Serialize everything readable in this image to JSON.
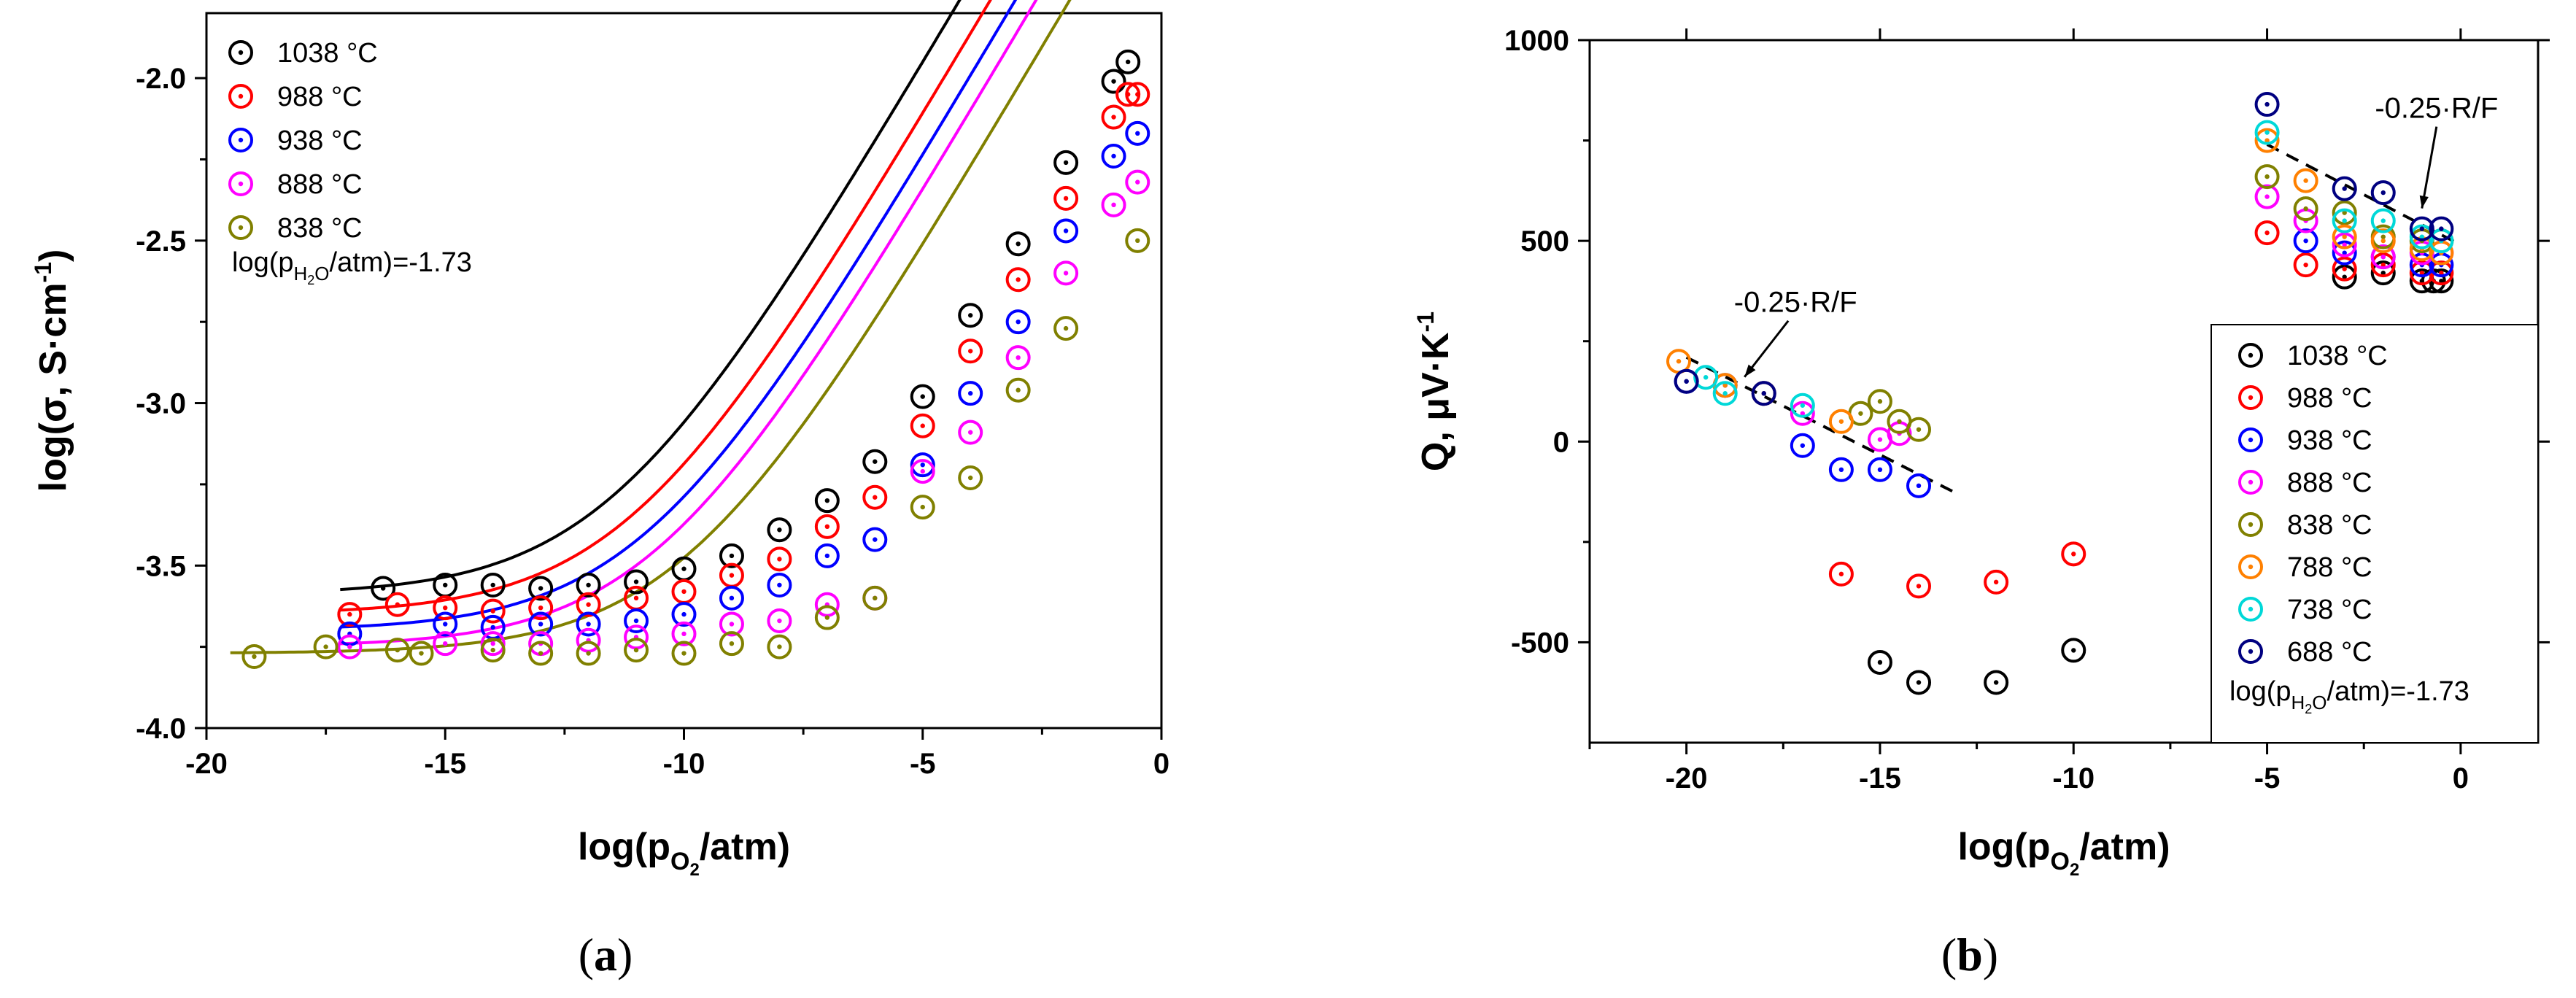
{
  "chart_data": [
    {
      "type": "scatter",
      "panel_label": "a",
      "title": "",
      "xlabel": {
        "prefix": "log(p",
        "sub": "O",
        "subsub": "2",
        "suffix": "/atm)"
      },
      "ylabel": {
        "text": "log(σ, S·cm",
        "sup": "-1",
        "close": ")"
      },
      "xlim": [
        -20,
        0
      ],
      "ylim": [
        -4.0,
        -1.8
      ],
      "xticks": [
        -20,
        -15,
        -10,
        -5,
        0
      ],
      "xtick_labels": [
        "-20",
        "-15",
        "-10",
        "-5",
        "0"
      ],
      "yticks": [
        -4.0,
        -3.5,
        -3.0,
        -2.5,
        -2.0
      ],
      "ytick_labels": [
        "-4.0",
        "-3.5",
        "-3.0",
        "-2.5",
        "-2.0"
      ],
      "grid": false,
      "legend_position": "top-left",
      "annotation": {
        "prefix": "log(p",
        "sub": "H",
        "subsub": "2",
        "subtail": "O",
        "suffix": "/atm)=-1.73"
      },
      "series": [
        {
          "name": "1038 °C",
          "color": "#000000",
          "x": [
            -16.3,
            -15.0,
            -14.0,
            -13.0,
            -12.0,
            -11.0,
            -10.0,
            -9.0,
            -8.0,
            -7.0,
            -6.0,
            -5.0,
            -4.0,
            -3.0,
            -2.0,
            -1.0,
            -0.7
          ],
          "y": [
            -3.57,
            -3.56,
            -3.56,
            -3.57,
            -3.56,
            -3.55,
            -3.51,
            -3.47,
            -3.39,
            -3.3,
            -3.18,
            -2.98,
            -2.73,
            -2.51,
            -2.26,
            -2.01,
            -1.95
          ],
          "fit": {
            "x0": -17.2,
            "base": -3.59,
            "amp": 0.000195,
            "slope": 0.25
          }
        },
        {
          "name": "988 °C",
          "color": "#ff0000",
          "x": [
            -17.0,
            -16.0,
            -15.0,
            -14.0,
            -13.0,
            -12.0,
            -11.0,
            -10.0,
            -9.0,
            -8.0,
            -7.0,
            -6.0,
            -5.0,
            -4.0,
            -3.0,
            -2.0,
            -1.0,
            -0.7,
            -0.5
          ],
          "y": [
            -3.65,
            -3.62,
            -3.63,
            -3.64,
            -3.63,
            -3.62,
            -3.6,
            -3.58,
            -3.53,
            -3.48,
            -3.38,
            -3.29,
            -3.07,
            -2.84,
            -2.62,
            -2.37,
            -2.12,
            -2.05,
            -2.05
          ],
          "fit": {
            "x0": -17.2,
            "base": -3.65,
            "amp": 0.000135,
            "slope": 0.25
          }
        },
        {
          "name": "938 °C",
          "color": "#0000ff",
          "x": [
            -17.0,
            -15.0,
            -14.0,
            -13.0,
            -12.0,
            -11.0,
            -10.0,
            -9.0,
            -8.0,
            -7.0,
            -6.0,
            -5.0,
            -4.0,
            -3.0,
            -2.0,
            -1.0,
            -0.5
          ],
          "y": [
            -3.71,
            -3.68,
            -3.69,
            -3.68,
            -3.68,
            -3.67,
            -3.65,
            -3.6,
            -3.56,
            -3.47,
            -3.42,
            -3.19,
            -2.97,
            -2.75,
            -2.47,
            -2.24,
            -2.17
          ],
          "fit": {
            "x0": -17.2,
            "base": -3.7,
            "amp": 0.0001,
            "slope": 0.25
          }
        },
        {
          "name": "888 °C",
          "color": "#ff00ff",
          "x": [
            -17.0,
            -15.0,
            -14.0,
            -13.0,
            -12.0,
            -11.0,
            -10.0,
            -9.0,
            -8.0,
            -7.0,
            -6.0,
            -5.0,
            -4.0,
            -3.0,
            -2.0,
            -1.0,
            -0.5
          ],
          "y": [
            -3.75,
            -3.74,
            -3.74,
            -3.74,
            -3.73,
            -3.72,
            -3.71,
            -3.68,
            -3.67,
            -3.62,
            -3.6,
            -3.21,
            -3.09,
            -2.86,
            -2.6,
            -2.39,
            -2.32
          ],
          "fit": {
            "x0": -17.2,
            "base": -3.75,
            "amp": 7.8e-05,
            "slope": 0.25
          }
        },
        {
          "name": "838 °C",
          "color": "#808000",
          "x": [
            -19.0,
            -17.5,
            -16.0,
            -15.5,
            -14.0,
            -13.0,
            -12.0,
            -11.0,
            -10.0,
            -9.0,
            -8.0,
            -7.0,
            -6.0,
            -5.0,
            -4.0,
            -3.0,
            -2.0,
            -0.5
          ],
          "y": [
            -3.78,
            -3.75,
            -3.76,
            -3.77,
            -3.76,
            -3.77,
            -3.77,
            -3.76,
            -3.77,
            -3.74,
            -3.75,
            -3.66,
            -3.6,
            -3.32,
            -3.23,
            -2.96,
            -2.77,
            -2.5
          ],
          "fit": {
            "x0": -19.5,
            "base": -3.77,
            "amp": 5.2e-05,
            "slope": 0.25
          }
        }
      ]
    },
    {
      "type": "scatter",
      "panel_label": "b",
      "title": "",
      "xlabel": {
        "prefix": "log(p",
        "sub": "O",
        "subsub": "2",
        "suffix": "/atm)"
      },
      "ylabel": {
        "text": "Q, μV·K",
        "sup": "-1",
        "close": ""
      },
      "xlim": [
        -22.5,
        2
      ],
      "ylim": [
        -750,
        1000
      ],
      "xticks": [
        -20,
        -15,
        -10,
        -5,
        0
      ],
      "xtick_labels": [
        "-20",
        "-15",
        "-10",
        "-5",
        "0"
      ],
      "yticks": [
        1000,
        500,
        0,
        -500
      ],
      "ytick_labels": [
        "1000",
        "500",
        "0",
        "-500"
      ],
      "grid": false,
      "legend_position": "bottom-right",
      "annotation": {
        "prefix": "log(p",
        "sub": "H",
        "subsub": "2",
        "subtail": "O",
        "suffix": "/atm)=-1.73"
      },
      "slope_annotations": [
        {
          "text": "-0.25·R/F",
          "line_x": [
            -20.0,
            -13.0
          ],
          "line_y": [
            210,
            -130
          ],
          "arrow_tip": [
            -18.5,
            150
          ]
        },
        {
          "text": "-0.25·R/F",
          "line_x": [
            -5.0,
            0.0
          ],
          "line_y": [
            740,
            490
          ],
          "arrow_tip": [
            -1.0,
            570
          ]
        }
      ],
      "series": [
        {
          "name": "1038 °C",
          "color": "#000000",
          "x": [
            -15.0,
            -14.0,
            -12.0,
            -10.0,
            -3.0,
            -2.0,
            -1.0,
            -0.7,
            -0.5
          ],
          "y": [
            -550,
            -600,
            -600,
            -520,
            410,
            420,
            400,
            400,
            400
          ]
        },
        {
          "name": "988 °C",
          "color": "#ff0000",
          "x": [
            -16.0,
            -14.0,
            -12.0,
            -10.0,
            -5.0,
            -4.0,
            -3.0,
            -2.0,
            -1.0,
            -0.5
          ],
          "y": [
            -330,
            -360,
            -350,
            -280,
            520,
            440,
            430,
            440,
            420,
            420
          ]
        },
        {
          "name": "938 °C",
          "color": "#0000ff",
          "x": [
            -20.0,
            -19.0,
            -18.0,
            -17.0,
            -16.0,
            -15.0,
            -14.0,
            -4.0,
            -3.0,
            -2.0,
            -1.0,
            -0.5
          ],
          "y": [
            150,
            140,
            120,
            -10,
            -70,
            -70,
            -110,
            500,
            470,
            460,
            440,
            440
          ]
        },
        {
          "name": "888 °C",
          "color": "#ff00ff",
          "x": [
            -17.0,
            -15.0,
            -14.5,
            -5.0,
            -4.0,
            -3.0,
            -2.0,
            -1.0,
            -0.5
          ],
          "y": [
            70,
            5,
            20,
            610,
            550,
            490,
            460,
            470,
            470
          ]
        },
        {
          "name": "838 °C",
          "color": "#808000",
          "x": [
            -15.5,
            -15.0,
            -14.5,
            -14.0,
            -5.0,
            -4.0,
            -3.0,
            -2.0,
            -1.0,
            -0.5
          ],
          "y": [
            70,
            100,
            50,
            30,
            660,
            580,
            570,
            510,
            500,
            500
          ]
        },
        {
          "name": "788 °C",
          "color": "#ff8000",
          "x": [
            -20.2,
            -19.0,
            -18.0,
            -16.0,
            -5.0,
            -4.0,
            -3.0,
            -2.0,
            -1.0,
            -0.5
          ],
          "y": [
            200,
            140,
            120,
            50,
            750,
            650,
            510,
            500,
            480,
            470
          ]
        },
        {
          "name": "738 °C",
          "color": "#00d8d8",
          "x": [
            -19.5,
            -19.0,
            -17.0,
            -5.0,
            -3.0,
            -2.0,
            -1.0,
            -0.5
          ],
          "y": [
            160,
            120,
            90,
            770,
            550,
            550,
            510,
            500
          ]
        },
        {
          "name": "688 °C",
          "color": "#000080",
          "x": [
            -20.0,
            -18.0,
            -5.0,
            -3.0,
            -2.0,
            -1.0,
            -0.5
          ],
          "y": [
            150,
            120,
            840,
            630,
            620,
            530,
            530
          ]
        }
      ]
    }
  ]
}
